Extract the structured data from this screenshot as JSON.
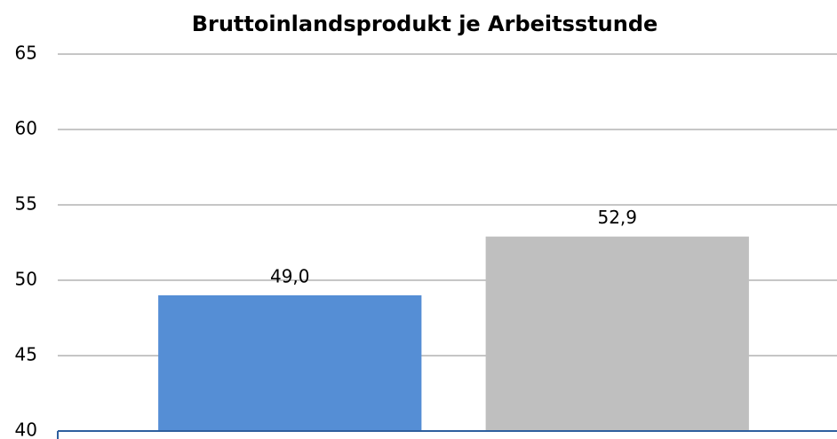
{
  "chart_data": {
    "type": "bar",
    "title": "Bruttoinlandsprodukt je Arbeitsstunde",
    "categories": [
      null,
      null
    ],
    "values": [
      49.0,
      52.9
    ],
    "value_labels": [
      "49,0",
      "52,9"
    ],
    "colors": [
      "#558ed5",
      "#bfbfbf"
    ],
    "ylim": [
      40,
      65
    ],
    "yticks": [
      40,
      45,
      50,
      55,
      60,
      65
    ],
    "grid": true
  }
}
